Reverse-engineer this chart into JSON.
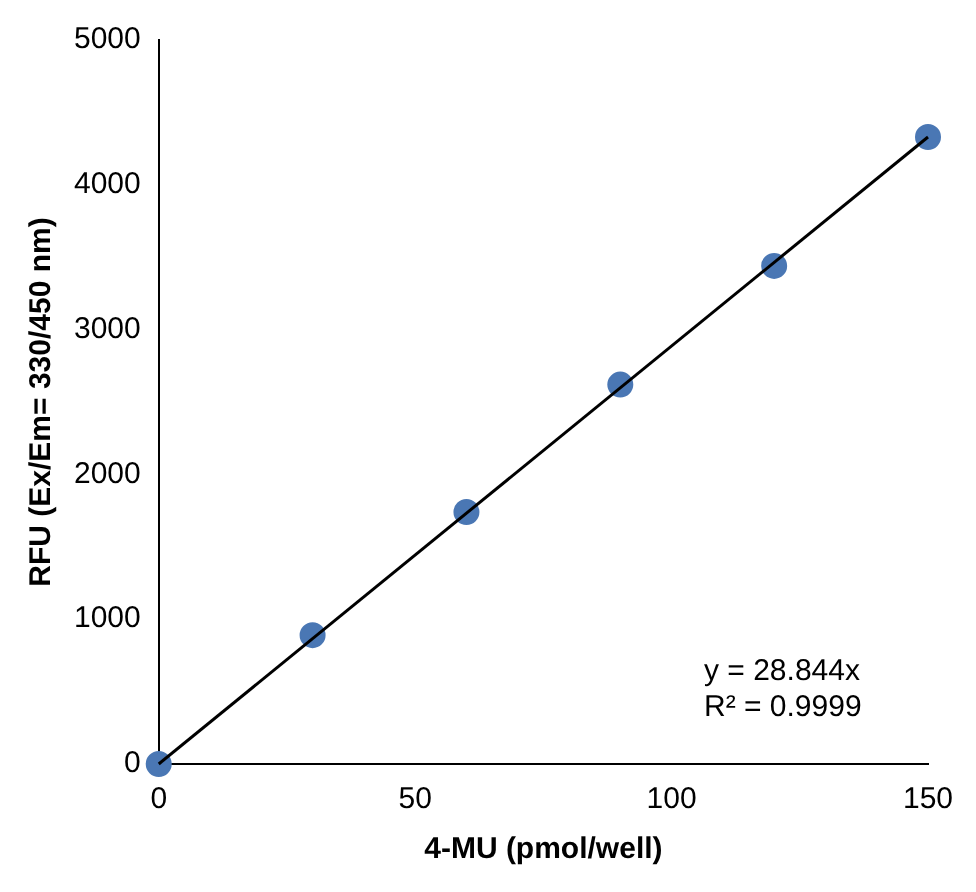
{
  "chart_data": {
    "type": "scatter",
    "xlabel": "4-MU (pmol/well)",
    "ylabel": "RFU (Ex/Em= 330/450 nm)",
    "xlim": [
      0,
      150
    ],
    "xticks": [
      0,
      50,
      100,
      150
    ],
    "ylim": [
      0,
      5000
    ],
    "yticks": [
      0,
      1000,
      2000,
      3000,
      4000,
      5000
    ],
    "grid": false,
    "legend": false,
    "series": [
      {
        "type": "scatter",
        "color": "#4a77b4",
        "marker": "circle",
        "x": [
          0,
          30,
          60,
          90,
          120,
          150
        ],
        "values": [
          0,
          890,
          1740,
          2620,
          3440,
          4330
        ]
      },
      {
        "type": "line",
        "color": "#000000",
        "x": [
          0,
          150
        ],
        "values": [
          0,
          4330
        ],
        "marker": "none"
      }
    ],
    "annotations": [
      "y = 28.844x",
      "R² = 0.9999"
    ]
  }
}
